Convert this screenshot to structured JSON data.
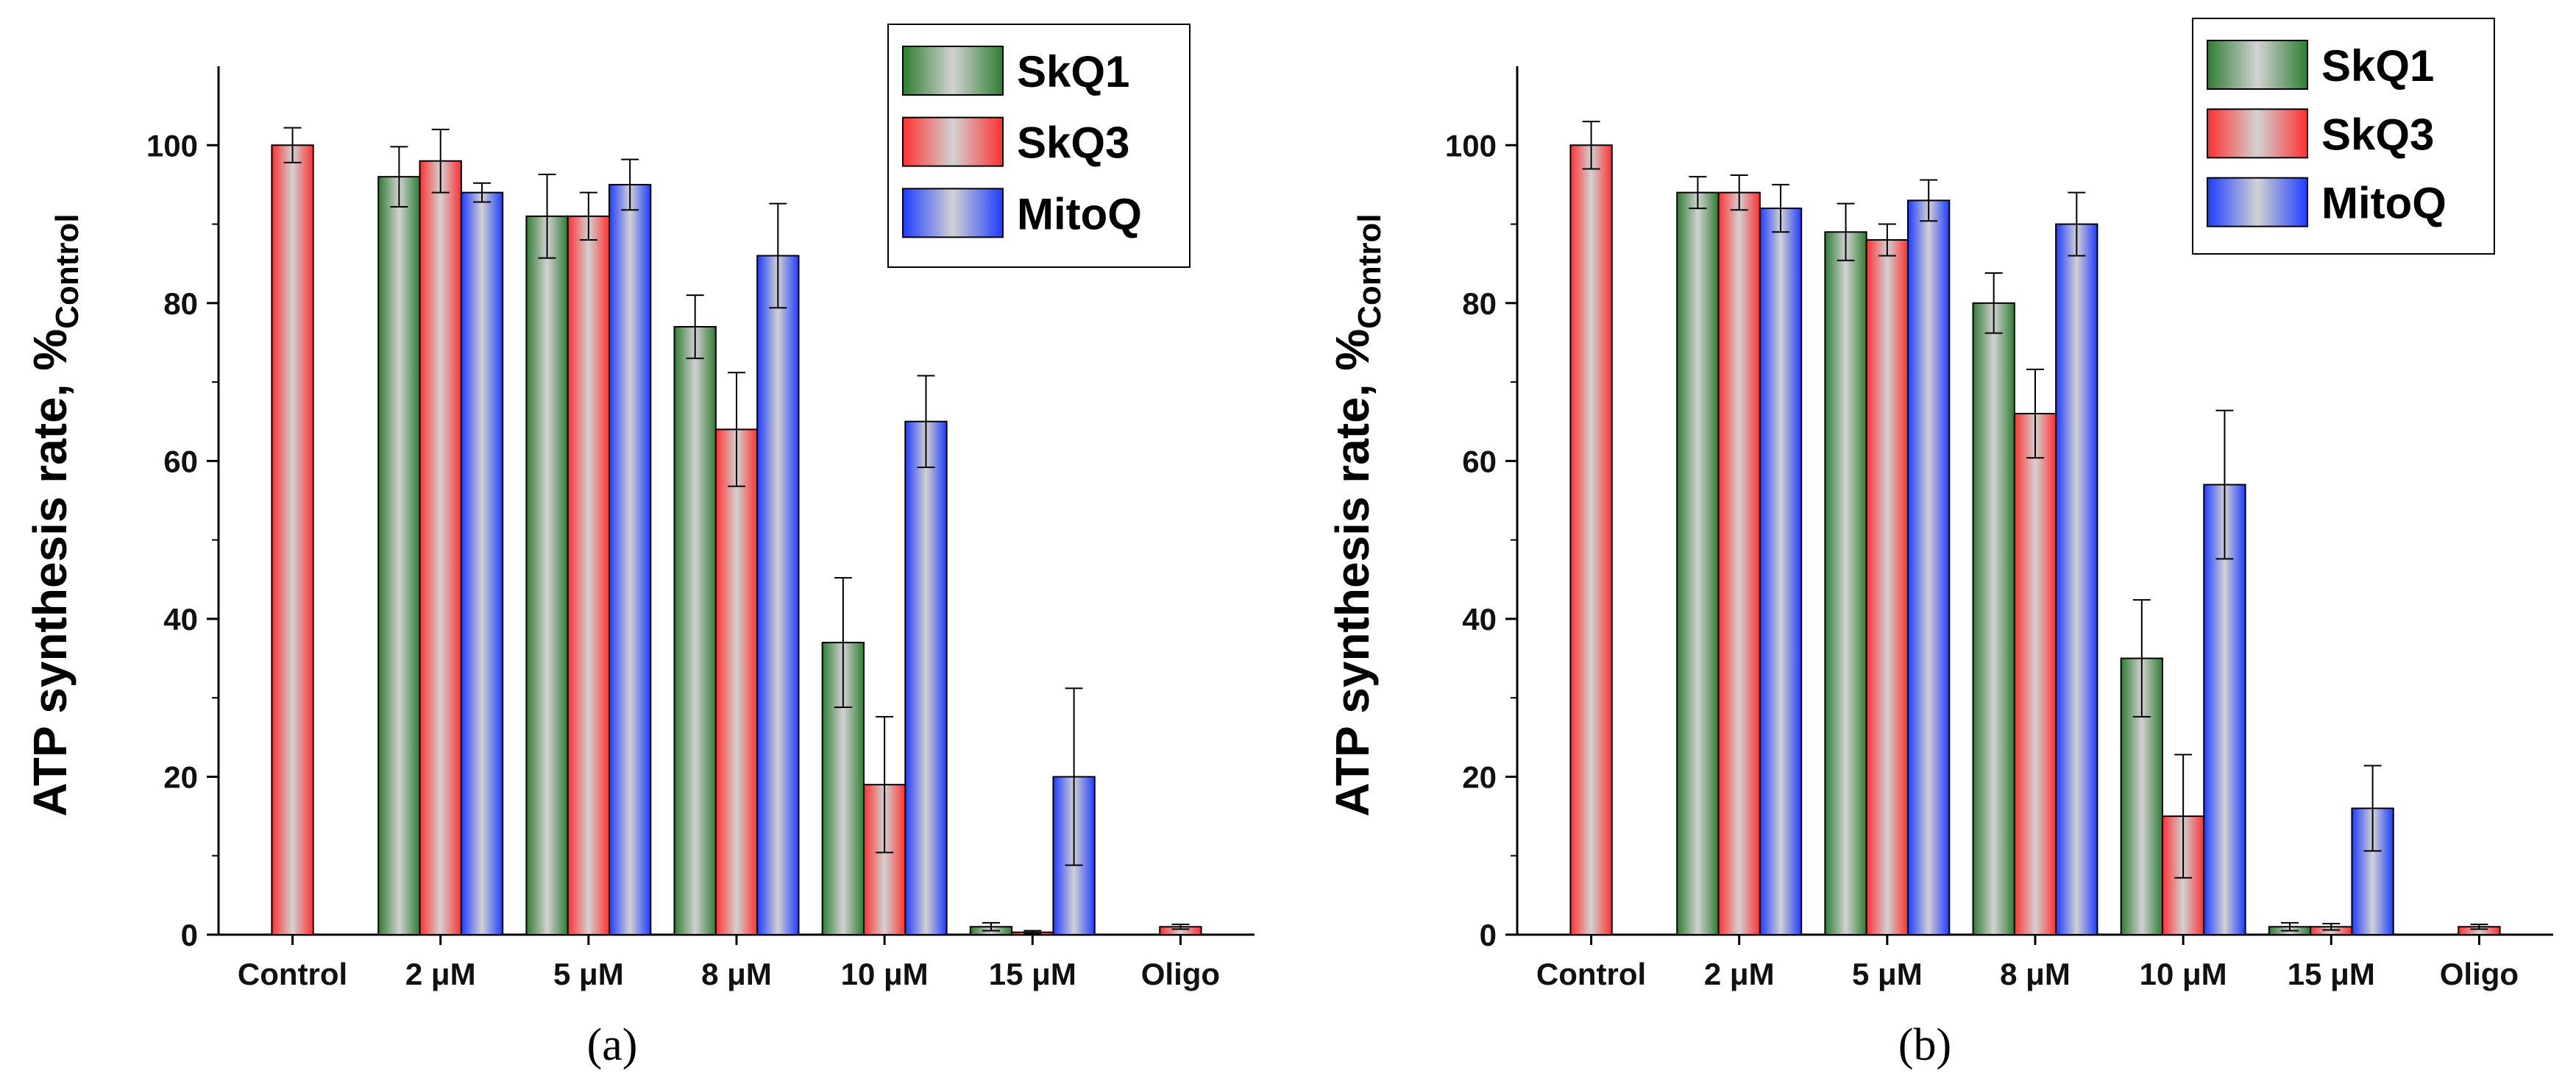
{
  "colors": {
    "SkQ1": "#2e7d32",
    "SkQ3": "#ff3030",
    "MitoQ": "#1e3cff",
    "highlight": "#d2d2d2"
  },
  "chart_data": [
    {
      "type": "bar",
      "panel_label": "(a)",
      "ylabel_main": "ATP synthesis rate, %",
      "ylabel_sub": "Control",
      "ylim": [
        0,
        110
      ],
      "yticks": [
        0,
        20,
        40,
        60,
        80,
        100
      ],
      "categories": [
        "Control",
        "2 μM",
        "5 μM",
        "8 μM",
        "10 μM",
        "15 μM",
        "Oligo"
      ],
      "legend_position": "top-right",
      "series": [
        {
          "name": "SkQ1",
          "values": [
            null,
            96,
            91,
            77,
            37,
            1,
            null
          ],
          "errors": [
            null,
            3.8,
            5.3,
            4.0,
            8.2,
            0.5,
            null
          ]
        },
        {
          "name": "SkQ3",
          "values": [
            100,
            98,
            91,
            64,
            19,
            0.3,
            1
          ],
          "errors": [
            2.2,
            4.0,
            3.0,
            7.2,
            8.6,
            0.2,
            0.3
          ]
        },
        {
          "name": "MitoQ",
          "values": [
            null,
            94,
            95,
            86,
            65,
            20,
            null
          ],
          "errors": [
            null,
            1.2,
            3.2,
            6.6,
            5.8,
            11.2,
            null
          ]
        }
      ]
    },
    {
      "type": "bar",
      "panel_label": "(b)",
      "ylabel_main": "ATP synthesis rate, %",
      "ylabel_sub": "Control",
      "ylim": [
        0,
        110
      ],
      "yticks": [
        0,
        20,
        40,
        60,
        80,
        100
      ],
      "categories": [
        "Control",
        "2 μM",
        "5 μM",
        "8 μM",
        "10 μM",
        "15 μM",
        "Oligo"
      ],
      "legend_position": "top-right",
      "series": [
        {
          "name": "SkQ1",
          "values": [
            null,
            94,
            89,
            80,
            35,
            1,
            null
          ],
          "errors": [
            null,
            2.0,
            3.6,
            3.8,
            7.4,
            0.5,
            null
          ]
        },
        {
          "name": "SkQ3",
          "values": [
            100,
            94,
            88,
            66,
            15,
            1,
            1
          ],
          "errors": [
            3.0,
            2.2,
            2.0,
            5.6,
            7.8,
            0.4,
            0.3
          ]
        },
        {
          "name": "MitoQ",
          "values": [
            null,
            92,
            93,
            90,
            57,
            16,
            null
          ],
          "errors": [
            null,
            3.0,
            2.6,
            4.0,
            9.4,
            5.4,
            null
          ]
        }
      ]
    }
  ]
}
